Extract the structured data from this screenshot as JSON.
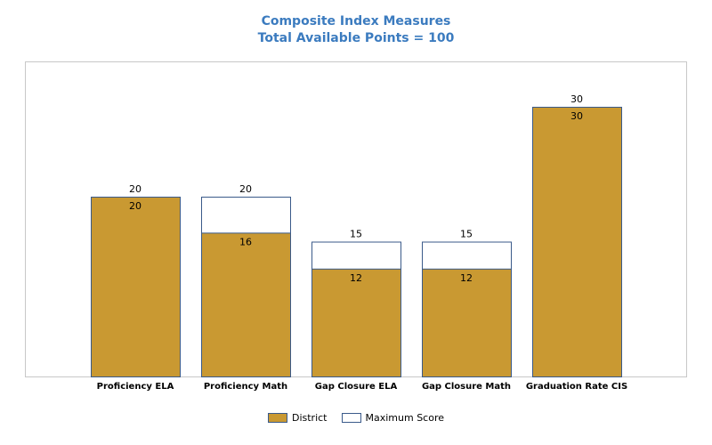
{
  "chart_data": {
    "type": "bar",
    "title": "Composite Index Measures",
    "subtitle": "Total Available Points = 100",
    "categories": [
      "Proficiency ELA",
      "Proficiency Math",
      "Gap Closure ELA",
      "Gap Closure Math",
      "Graduation Rate CIS"
    ],
    "series": [
      {
        "name": "District",
        "values": [
          20,
          16,
          12,
          12,
          30
        ],
        "color": "#c99932"
      },
      {
        "name": "Maximum Score",
        "values": [
          20,
          20,
          15,
          15,
          30
        ],
        "color": "#ffffff"
      }
    ],
    "ylim": [
      0,
      35
    ],
    "grid": false,
    "legend": "bottom-center",
    "bar_border_color": "#3a5a8a"
  }
}
